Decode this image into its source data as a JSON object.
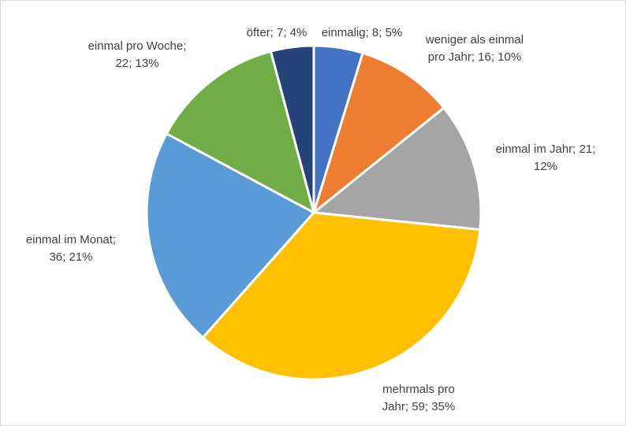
{
  "chart_data": {
    "type": "pie",
    "title": "",
    "start_angle_deg": 0,
    "direction": "clockwise",
    "slices": [
      {
        "label": "einmalig",
        "value": 8,
        "percent": "5%",
        "color": "#4472c4",
        "label_lines": [
          "einmalig; 8; 5%"
        ]
      },
      {
        "label": "weniger als einmal pro Jahr",
        "value": 16,
        "percent": "10%",
        "color": "#ed7d31",
        "label_lines": [
          "weniger als einmal",
          "pro Jahr; 16; 10%"
        ]
      },
      {
        "label": "einmal im Jahr",
        "value": 21,
        "percent": "12%",
        "color": "#a5a5a5",
        "label_lines": [
          "einmal im Jahr; 21;",
          "12%"
        ]
      },
      {
        "label": "mehrmals pro Jahr",
        "value": 59,
        "percent": "35%",
        "color": "#ffc000",
        "label_lines": [
          "mehrmals pro",
          "Jahr; 59; 35%"
        ]
      },
      {
        "label": "einmal im Monat",
        "value": 36,
        "percent": "21%",
        "color": "#5b9bd5",
        "label_lines": [
          "einmal im Monat;",
          "36; 21%"
        ]
      },
      {
        "label": "einmal pro Woche",
        "value": 22,
        "percent": "13%",
        "color": "#70ad47",
        "label_lines": [
          "einmal pro Woche;",
          "22; 13%"
        ]
      },
      {
        "label": "öfter",
        "value": 7,
        "percent": "4%",
        "color": "#264478",
        "label_lines": [
          "öfter; 7; 4%"
        ]
      }
    ]
  }
}
